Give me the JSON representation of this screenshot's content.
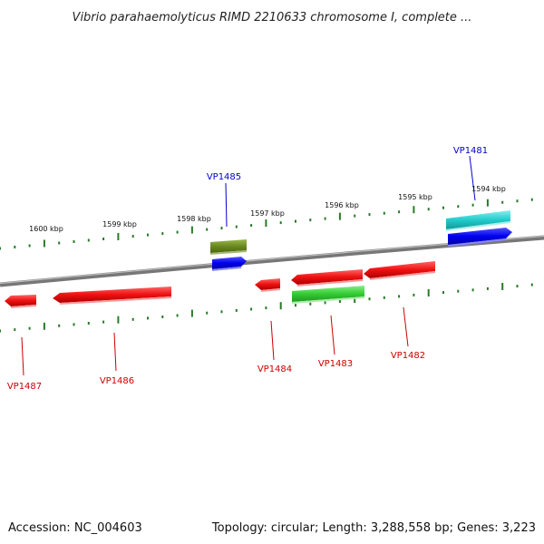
{
  "map": {
    "title": "Vibrio parahaemolyticus RIMD 2210633 chromosome I, complete ...",
    "accession": "Accession: NC_004603",
    "summary": "Topology: circular; Length: 3,288,558 bp; Genes: 3,223"
  },
  "kbp_ticks": [
    "1600 kbp",
    "1599 kbp",
    "1598 kbp",
    "1597 kbp",
    "1596 kbp",
    "1595 kbp",
    "1594 kbp"
  ],
  "genes": [
    "VP1481",
    "VP1482",
    "VP1483",
    "VP1484",
    "VP1485",
    "VP1486",
    "VP1487"
  ],
  "colors": {
    "forward_label": "#0000cc",
    "reverse_label": "#cc0000",
    "red": "#ee1111",
    "blue": "#0000ee",
    "cyan": "#22cccc",
    "olive": "#6b8a22",
    "green": "#33cc33",
    "tick": "#2a7a2a",
    "backbone": "#808080"
  }
}
